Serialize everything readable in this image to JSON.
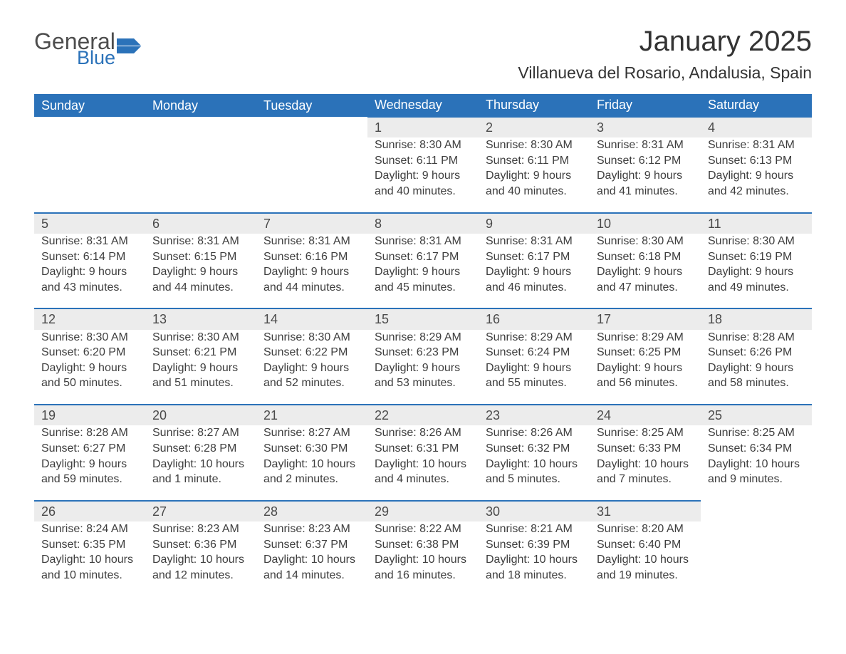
{
  "brand": {
    "line1": "General",
    "line2": "Blue"
  },
  "title": "January 2025",
  "subtitle": "Villanueva del Rosario, Andalusia, Spain",
  "colors": {
    "header_bg": "#2b72b9",
    "header_text": "#ffffff",
    "day_bg": "#ececec",
    "day_border_top": "#2b72b9",
    "page_bg": "#ffffff",
    "body_text": "#3e3e3e",
    "title_text": "#333333",
    "logo_gray": "#4d4d4d",
    "logo_blue": "#2b72b9"
  },
  "typography": {
    "title_fontsize": 40,
    "subtitle_fontsize": 23,
    "header_fontsize": 18,
    "cell_fontsize": 16
  },
  "weekdays": [
    "Sunday",
    "Monday",
    "Tuesday",
    "Wednesday",
    "Thursday",
    "Friday",
    "Saturday"
  ],
  "weeks": [
    [
      null,
      null,
      null,
      {
        "n": "1",
        "sunrise": "Sunrise: 8:30 AM",
        "sunset": "Sunset: 6:11 PM",
        "d1": "Daylight: 9 hours",
        "d2": "and 40 minutes."
      },
      {
        "n": "2",
        "sunrise": "Sunrise: 8:30 AM",
        "sunset": "Sunset: 6:11 PM",
        "d1": "Daylight: 9 hours",
        "d2": "and 40 minutes."
      },
      {
        "n": "3",
        "sunrise": "Sunrise: 8:31 AM",
        "sunset": "Sunset: 6:12 PM",
        "d1": "Daylight: 9 hours",
        "d2": "and 41 minutes."
      },
      {
        "n": "4",
        "sunrise": "Sunrise: 8:31 AM",
        "sunset": "Sunset: 6:13 PM",
        "d1": "Daylight: 9 hours",
        "d2": "and 42 minutes."
      }
    ],
    [
      {
        "n": "5",
        "sunrise": "Sunrise: 8:31 AM",
        "sunset": "Sunset: 6:14 PM",
        "d1": "Daylight: 9 hours",
        "d2": "and 43 minutes."
      },
      {
        "n": "6",
        "sunrise": "Sunrise: 8:31 AM",
        "sunset": "Sunset: 6:15 PM",
        "d1": "Daylight: 9 hours",
        "d2": "and 44 minutes."
      },
      {
        "n": "7",
        "sunrise": "Sunrise: 8:31 AM",
        "sunset": "Sunset: 6:16 PM",
        "d1": "Daylight: 9 hours",
        "d2": "and 44 minutes."
      },
      {
        "n": "8",
        "sunrise": "Sunrise: 8:31 AM",
        "sunset": "Sunset: 6:17 PM",
        "d1": "Daylight: 9 hours",
        "d2": "and 45 minutes."
      },
      {
        "n": "9",
        "sunrise": "Sunrise: 8:31 AM",
        "sunset": "Sunset: 6:17 PM",
        "d1": "Daylight: 9 hours",
        "d2": "and 46 minutes."
      },
      {
        "n": "10",
        "sunrise": "Sunrise: 8:30 AM",
        "sunset": "Sunset: 6:18 PM",
        "d1": "Daylight: 9 hours",
        "d2": "and 47 minutes."
      },
      {
        "n": "11",
        "sunrise": "Sunrise: 8:30 AM",
        "sunset": "Sunset: 6:19 PM",
        "d1": "Daylight: 9 hours",
        "d2": "and 49 minutes."
      }
    ],
    [
      {
        "n": "12",
        "sunrise": "Sunrise: 8:30 AM",
        "sunset": "Sunset: 6:20 PM",
        "d1": "Daylight: 9 hours",
        "d2": "and 50 minutes."
      },
      {
        "n": "13",
        "sunrise": "Sunrise: 8:30 AM",
        "sunset": "Sunset: 6:21 PM",
        "d1": "Daylight: 9 hours",
        "d2": "and 51 minutes."
      },
      {
        "n": "14",
        "sunrise": "Sunrise: 8:30 AM",
        "sunset": "Sunset: 6:22 PM",
        "d1": "Daylight: 9 hours",
        "d2": "and 52 minutes."
      },
      {
        "n": "15",
        "sunrise": "Sunrise: 8:29 AM",
        "sunset": "Sunset: 6:23 PM",
        "d1": "Daylight: 9 hours",
        "d2": "and 53 minutes."
      },
      {
        "n": "16",
        "sunrise": "Sunrise: 8:29 AM",
        "sunset": "Sunset: 6:24 PM",
        "d1": "Daylight: 9 hours",
        "d2": "and 55 minutes."
      },
      {
        "n": "17",
        "sunrise": "Sunrise: 8:29 AM",
        "sunset": "Sunset: 6:25 PM",
        "d1": "Daylight: 9 hours",
        "d2": "and 56 minutes."
      },
      {
        "n": "18",
        "sunrise": "Sunrise: 8:28 AM",
        "sunset": "Sunset: 6:26 PM",
        "d1": "Daylight: 9 hours",
        "d2": "and 58 minutes."
      }
    ],
    [
      {
        "n": "19",
        "sunrise": "Sunrise: 8:28 AM",
        "sunset": "Sunset: 6:27 PM",
        "d1": "Daylight: 9 hours",
        "d2": "and 59 minutes."
      },
      {
        "n": "20",
        "sunrise": "Sunrise: 8:27 AM",
        "sunset": "Sunset: 6:28 PM",
        "d1": "Daylight: 10 hours",
        "d2": "and 1 minute."
      },
      {
        "n": "21",
        "sunrise": "Sunrise: 8:27 AM",
        "sunset": "Sunset: 6:30 PM",
        "d1": "Daylight: 10 hours",
        "d2": "and 2 minutes."
      },
      {
        "n": "22",
        "sunrise": "Sunrise: 8:26 AM",
        "sunset": "Sunset: 6:31 PM",
        "d1": "Daylight: 10 hours",
        "d2": "and 4 minutes."
      },
      {
        "n": "23",
        "sunrise": "Sunrise: 8:26 AM",
        "sunset": "Sunset: 6:32 PM",
        "d1": "Daylight: 10 hours",
        "d2": "and 5 minutes."
      },
      {
        "n": "24",
        "sunrise": "Sunrise: 8:25 AM",
        "sunset": "Sunset: 6:33 PM",
        "d1": "Daylight: 10 hours",
        "d2": "and 7 minutes."
      },
      {
        "n": "25",
        "sunrise": "Sunrise: 8:25 AM",
        "sunset": "Sunset: 6:34 PM",
        "d1": "Daylight: 10 hours",
        "d2": "and 9 minutes."
      }
    ],
    [
      {
        "n": "26",
        "sunrise": "Sunrise: 8:24 AM",
        "sunset": "Sunset: 6:35 PM",
        "d1": "Daylight: 10 hours",
        "d2": "and 10 minutes."
      },
      {
        "n": "27",
        "sunrise": "Sunrise: 8:23 AM",
        "sunset": "Sunset: 6:36 PM",
        "d1": "Daylight: 10 hours",
        "d2": "and 12 minutes."
      },
      {
        "n": "28",
        "sunrise": "Sunrise: 8:23 AM",
        "sunset": "Sunset: 6:37 PM",
        "d1": "Daylight: 10 hours",
        "d2": "and 14 minutes."
      },
      {
        "n": "29",
        "sunrise": "Sunrise: 8:22 AM",
        "sunset": "Sunset: 6:38 PM",
        "d1": "Daylight: 10 hours",
        "d2": "and 16 minutes."
      },
      {
        "n": "30",
        "sunrise": "Sunrise: 8:21 AM",
        "sunset": "Sunset: 6:39 PM",
        "d1": "Daylight: 10 hours",
        "d2": "and 18 minutes."
      },
      {
        "n": "31",
        "sunrise": "Sunrise: 8:20 AM",
        "sunset": "Sunset: 6:40 PM",
        "d1": "Daylight: 10 hours",
        "d2": "and 19 minutes."
      },
      null
    ]
  ]
}
